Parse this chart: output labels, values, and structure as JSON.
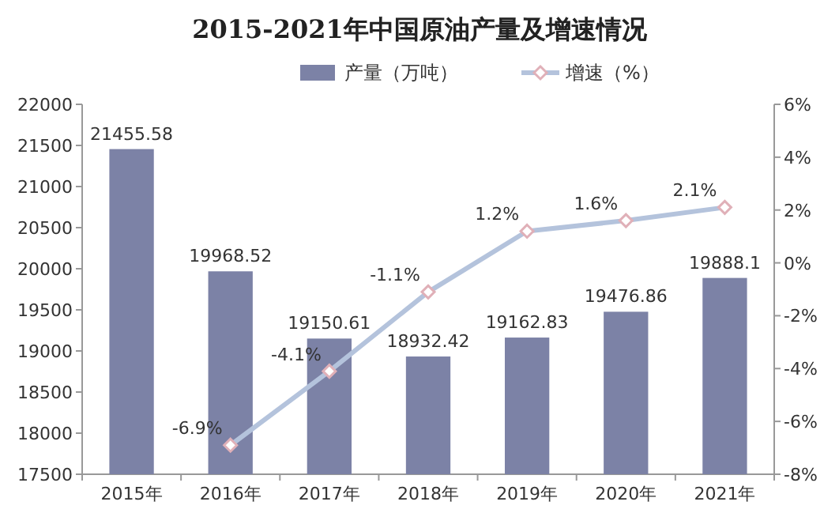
{
  "chart_data": {
    "type": "bar",
    "title": "2015-2021年中国原油产量及增速情况",
    "categories": [
      "2015年",
      "2016年",
      "2017年",
      "2018年",
      "2019年",
      "2020年",
      "2021年"
    ],
    "series": [
      {
        "name": "产量（万吨）",
        "color": "#7c82a6",
        "values": [
          21455.58,
          19968.52,
          19150.61,
          18932.42,
          19162.83,
          19476.86,
          19888.1
        ]
      },
      {
        "name": "增速（%）",
        "type": "line",
        "axis": "y2",
        "color": "#b4c3dc",
        "marker": "diamond",
        "values": [
          null,
          -6.9,
          -4.1,
          -1.1,
          1.2,
          1.6,
          2.1
        ],
        "value_labels": [
          null,
          "-6.9%",
          "-4.1%",
          "-1.1%",
          "1.2%",
          "1.6%",
          "2.1%"
        ]
      }
    ],
    "ylim": [
      17500,
      22000
    ],
    "yticks": [
      17500,
      18000,
      18500,
      19000,
      19500,
      20000,
      20500,
      21000,
      21500,
      22000
    ],
    "y2lim": [
      -8,
      6
    ],
    "y2ticks": [
      {
        "value": -8,
        "label": "-8%"
      },
      {
        "value": -6,
        "label": "-6%"
      },
      {
        "value": -4,
        "label": "-4%"
      },
      {
        "value": -2,
        "label": "-2%"
      },
      {
        "value": 0,
        "label": "0%"
      },
      {
        "value": 2,
        "label": "2%"
      },
      {
        "value": 4,
        "label": "4%"
      },
      {
        "value": 6,
        "label": "6%"
      }
    ],
    "data_labels": true,
    "legend": "top",
    "grid": false
  }
}
